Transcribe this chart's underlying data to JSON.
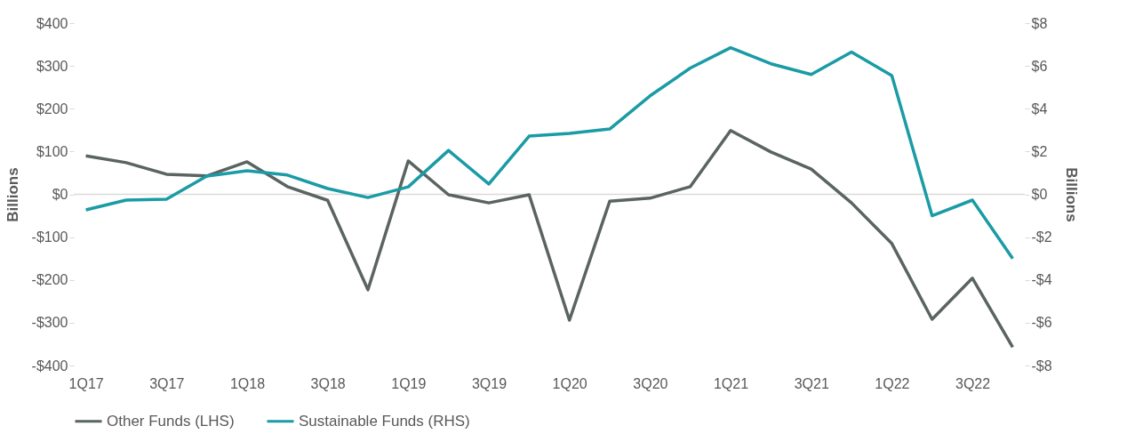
{
  "chart_data": {
    "type": "line",
    "ylabel": "Billions",
    "y2label": "Billions",
    "categories": [
      "1Q17",
      null,
      "3Q17",
      null,
      "1Q18",
      null,
      "3Q18",
      null,
      "1Q19",
      null,
      "3Q19",
      null,
      "1Q20",
      null,
      "3Q20",
      null,
      "1Q21",
      null,
      "3Q21",
      null,
      "1Q22",
      null,
      "3Q22",
      null
    ],
    "series": [
      {
        "name": "Other Funds (LHS)",
        "color": "#5a6461",
        "values": [
          90,
          74,
          47,
          43,
          76,
          18,
          -14,
          -223,
          78,
          -1,
          -20,
          -1,
          -294,
          -16,
          -9,
          18,
          149,
          99,
          59,
          -20,
          -115,
          -292,
          -196,
          -357
        ]
      },
      {
        "name": "Sustainable Funds (RHS)",
        "color": "#1a9ba5",
        "axis": "y2",
        "values": [
          -0.73,
          -0.27,
          -0.23,
          0.85,
          1.1,
          0.9,
          0.27,
          -0.15,
          0.35,
          2.05,
          0.48,
          2.72,
          2.85,
          3.05,
          4.6,
          5.9,
          6.85,
          6.1,
          5.6,
          6.65,
          5.55,
          -1.0,
          -0.27,
          -3.0
        ]
      }
    ],
    "ylim": [
      -400,
      400
    ],
    "yticks": [
      {
        "value": -400,
        "label": "-$400"
      },
      {
        "value": -300,
        "label": "-$300"
      },
      {
        "value": -200,
        "label": "-$200"
      },
      {
        "value": -100,
        "label": "-$100"
      },
      {
        "value": 0,
        "label": "$0"
      },
      {
        "value": 100,
        "label": "$100"
      },
      {
        "value": 200,
        "label": "$200"
      },
      {
        "value": 300,
        "label": "$300"
      },
      {
        "value": 400,
        "label": "$400"
      }
    ],
    "y2lim": [
      -8,
      8
    ],
    "y2ticks": [
      {
        "value": -8,
        "label": "-$8"
      },
      {
        "value": -6,
        "label": "-$6"
      },
      {
        "value": -4,
        "label": "-$4"
      },
      {
        "value": -2,
        "label": "-$2"
      },
      {
        "value": 0,
        "label": "$0"
      },
      {
        "value": 2,
        "label": "$2"
      },
      {
        "value": 4,
        "label": "$4"
      },
      {
        "value": 6,
        "label": "$6"
      },
      {
        "value": 8,
        "label": "$8"
      }
    ],
    "ref_lines": [
      {
        "axis": "y",
        "value": 0,
        "color": "#d9d9d9"
      }
    ],
    "grid": false,
    "legend": "bottom",
    "marker": "none",
    "line_style": "solid"
  }
}
